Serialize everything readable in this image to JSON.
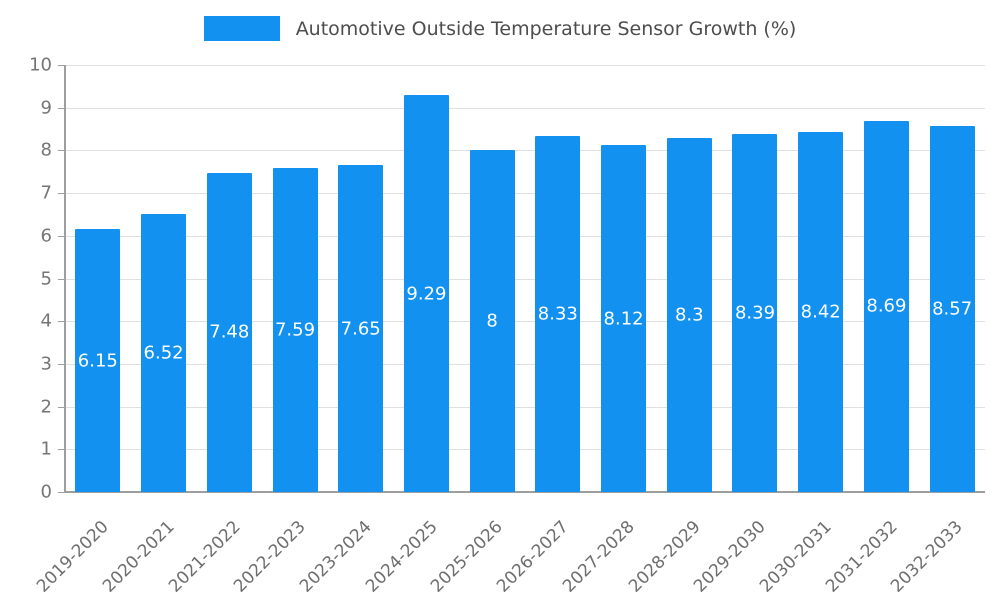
{
  "title": "Automotive Outside Temperature Sensor Growth (%)",
  "legend": {
    "label": "Automotive Outside Temperature Sensor Growth (%)"
  },
  "colors": {
    "bar": "#1291F1",
    "title_text": "#4d4d4d",
    "axis_text": "#757575",
    "x_axis_text": "#6e6e6e",
    "grid": "#e0e0e0",
    "axis_line": "#9e9e9e",
    "value_label": "#ffffff",
    "background": "#ffffff"
  },
  "chart_data": {
    "type": "bar",
    "title": "Automotive Outside Temperature Sensor Growth (%)",
    "categories": [
      "2019-2020",
      "2020-2021",
      "2021-2022",
      "2022-2023",
      "2023-2024",
      "2024-2025",
      "2025-2026",
      "2026-2027",
      "2027-2028",
      "2028-2029",
      "2029-2030",
      "2030-2031",
      "2031-2032",
      "2032-2033"
    ],
    "values": [
      6.15,
      6.52,
      7.48,
      7.59,
      7.65,
      9.29,
      8,
      8.33,
      8.12,
      8.3,
      8.39,
      8.42,
      8.69,
      8.57
    ],
    "xlabel": "",
    "ylabel": "",
    "ylim": [
      0,
      10
    ],
    "ytick_step": 1,
    "yticks": [
      0,
      1,
      2,
      3,
      4,
      5,
      6,
      7,
      8,
      9,
      10
    ],
    "grid": true,
    "legend_position": "top",
    "value_label_position": "inside-middle",
    "x_label_rotation_deg": -45
  }
}
